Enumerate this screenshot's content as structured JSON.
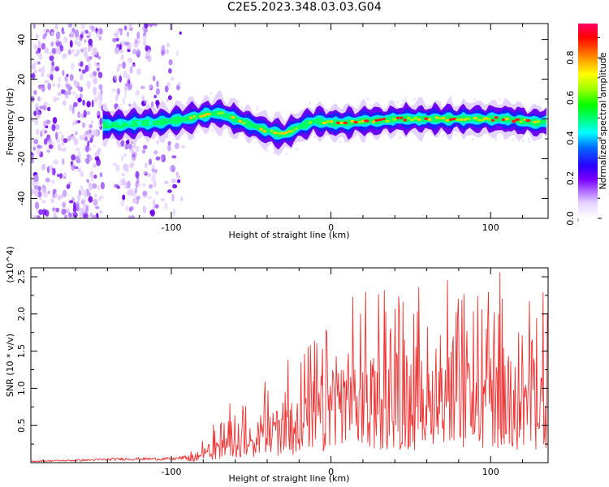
{
  "title": "C2E5.2023.348.03.03.G04",
  "chart_data": [
    {
      "type": "heatmap",
      "xlabel": "Height of straight line (km)",
      "ylabel": "Frequency (Hz)",
      "xlim": [
        -188,
        136
      ],
      "ylim": [
        -50,
        48
      ],
      "xticks": [
        -100,
        0,
        100
      ],
      "yticks": [
        -40,
        -20,
        0,
        20,
        40
      ],
      "colorbar": {
        "label": "Normalized spectral amplitude",
        "range": [
          0,
          0.97
        ],
        "ticks": [
          0.0,
          0.2,
          0.4,
          0.6,
          0.8
        ]
      },
      "ridge": {
        "x": [
          -143,
          -130,
          -120,
          -110,
          -100,
          -90,
          -80,
          -70,
          -60,
          -50,
          -40,
          -30,
          -20,
          -10,
          0,
          10,
          20,
          30,
          40,
          50,
          60,
          70,
          80,
          90,
          100,
          110,
          120,
          130,
          136
        ],
        "y": [
          -3,
          -3,
          -2,
          -2,
          -1,
          0,
          2,
          3,
          0,
          -3,
          -6,
          -8,
          -4,
          -1,
          -2,
          -2,
          -1,
          -1,
          0,
          0,
          0,
          0,
          0,
          0,
          0,
          0,
          -1,
          -2,
          -1
        ]
      },
      "noise_region": {
        "x": [
          -188,
          -92
        ]
      }
    },
    {
      "type": "line",
      "xlabel": "Height of straight line (km)",
      "ylabel": "SNR (10 * v/v)",
      "y_multiplier": "(x10^4)",
      "xlim": [
        -188,
        136
      ],
      "ylim": [
        0,
        2.62
      ],
      "xticks": [
        -100,
        0,
        100
      ],
      "yticks": [
        0.5,
        1.0,
        1.5,
        2.0,
        2.5
      ],
      "line_color": "#ee3333",
      "series": [
        {
          "x": [
            -188,
            -160,
            -130,
            -100,
            -90,
            -85,
            -80,
            -75,
            -70,
            -65,
            -60,
            -55,
            -50,
            -45,
            -40,
            -35,
            -30,
            -25,
            -20,
            -15,
            -10,
            -5,
            0,
            5,
            10,
            15,
            20,
            25,
            30,
            35,
            40,
            45,
            50,
            55,
            60,
            65,
            70,
            75,
            80,
            85,
            90,
            95,
            100,
            105,
            110,
            115,
            120,
            125,
            130,
            136
          ],
          "values": [
            0.02,
            0.03,
            0.05,
            0.05,
            0.07,
            0.1,
            0.15,
            0.22,
            0.3,
            0.36,
            0.4,
            0.44,
            0.46,
            0.5,
            0.54,
            0.56,
            0.62,
            0.68,
            0.72,
            0.74,
            0.8,
            0.88,
            1.0,
            1.02,
            1.05,
            1.08,
            1.1,
            1.12,
            1.14,
            1.16,
            1.15,
            1.16,
            1.12,
            1.12,
            1.12,
            1.16,
            1.2,
            1.15,
            1.1,
            1.12,
            1.1,
            1.15,
            1.18,
            1.2,
            1.18,
            1.15,
            1.1,
            1.12,
            1.15,
            1.1
          ]
        }
      ]
    }
  ]
}
